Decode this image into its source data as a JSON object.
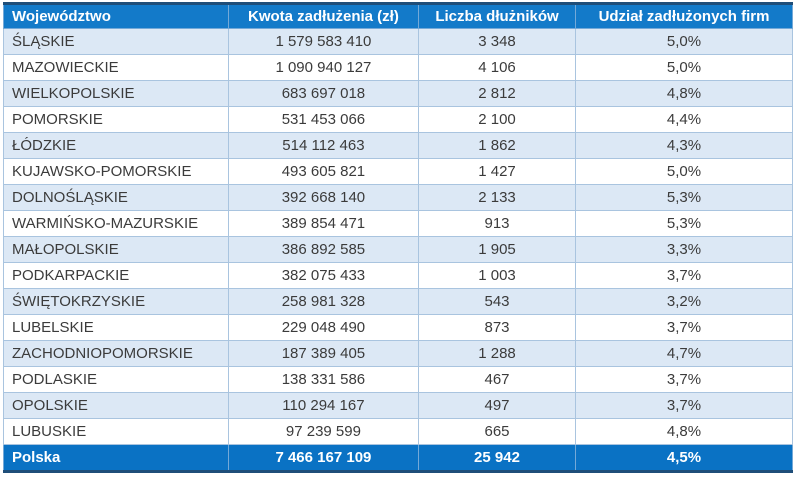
{
  "chart_data": {
    "type": "table",
    "columns": [
      "Województwo",
      "Kwota zadłużenia (zł)",
      "Liczba dłużników",
      "Udział zadłużonych firm"
    ],
    "rows": [
      [
        "ŚLĄSKIE",
        "1 579 583 410",
        "3 348",
        "5,0%"
      ],
      [
        "MAZOWIECKIE",
        "1 090 940 127",
        "4 106",
        "5,0%"
      ],
      [
        "WIELKOPOLSKIE",
        "683 697 018",
        "2 812",
        "4,8%"
      ],
      [
        "POMORSKIE",
        "531 453 066",
        "2 100",
        "4,4%"
      ],
      [
        "ŁÓDZKIE",
        "514 112 463",
        "1 862",
        "4,3%"
      ],
      [
        "KUJAWSKO-POMORSKIE",
        "493 605 821",
        "1 427",
        "5,0%"
      ],
      [
        "DOLNOŚLĄSKIE",
        "392 668 140",
        "2 133",
        "5,3%"
      ],
      [
        "WARMIŃSKO-MAZURSKIE",
        "389 854 471",
        "913",
        "5,3%"
      ],
      [
        "MAŁOPOLSKIE",
        "386 892 585",
        "1 905",
        "3,3%"
      ],
      [
        "PODKARPACKIE",
        "382 075 433",
        "1 003",
        "3,7%"
      ],
      [
        "ŚWIĘTOKRZYSKIE",
        "258 981 328",
        "543",
        "3,2%"
      ],
      [
        "LUBELSKIE",
        "229 048 490",
        "873",
        "3,7%"
      ],
      [
        "ZACHODNIOPOMORSKIE",
        "187 389 405",
        "1 288",
        "4,7%"
      ],
      [
        "PODLASKIE",
        "138 331 586",
        "467",
        "3,7%"
      ],
      [
        "OPOLSKIE",
        "110 294 167",
        "497",
        "3,7%"
      ],
      [
        "LUBUSKIE",
        "97 239 599",
        "665",
        "4,8%"
      ]
    ],
    "footer": [
      "Polska",
      "7 466 167 109",
      "25 942",
      "4,5%"
    ]
  },
  "colors": {
    "header_bg": "#137ac9",
    "footer_bg": "#0a72c4",
    "band_bg": "#dce8f5",
    "border_light": "#a9c4df",
    "border_dark": "#1f4e79",
    "text": "#3b3b3b",
    "header_text": "#ffffff"
  }
}
